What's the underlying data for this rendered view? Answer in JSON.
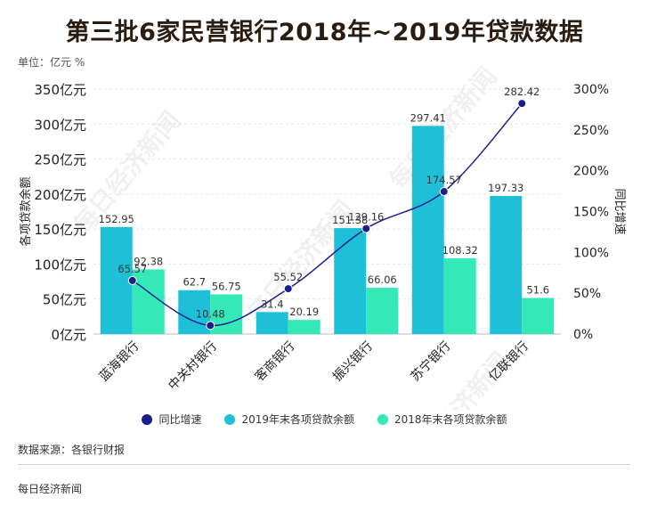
{
  "title": "第三批6家民营银行2018年~2019年贷款数据",
  "unit_label": "单位：亿元 %",
  "source": "数据来源：各银行财报",
  "footer": "每日经济新闻",
  "watermark": "每日经济新闻",
  "colors": {
    "series_2019": "#1ec0d8",
    "series_2018": "#35e8b8",
    "growth": "#1a1f8c"
  },
  "chart_data": {
    "type": "bar",
    "categories": [
      "蓝海银行",
      "中关村银行",
      "客商银行",
      "振兴银行",
      "苏宁银行",
      "亿联银行"
    ],
    "ylabel": "各项贷款余额",
    "y2label": "同比增速",
    "ylim": [
      0,
      350
    ],
    "y2lim": [
      0,
      300
    ],
    "yticks": [
      "0亿元",
      "50亿元",
      "100亿元",
      "150亿元",
      "200亿元",
      "250亿元",
      "300亿元",
      "350亿元"
    ],
    "y2ticks": [
      "0%",
      "50%",
      "100%",
      "150%",
      "200%",
      "250%",
      "300%"
    ],
    "series": [
      {
        "name": "2019年末各项贷款余额",
        "kind": "bar",
        "values": [
          152.95,
          62.7,
          31.4,
          151.38,
          297.41,
          197.33
        ],
        "labels": [
          "152.95",
          "62.7",
          "31.4",
          "151.38",
          "297.41",
          "197.33"
        ]
      },
      {
        "name": "2018年末各项贷款余额",
        "kind": "bar",
        "values": [
          92.38,
          56.75,
          20.19,
          66.06,
          108.32,
          51.6
        ],
        "labels": [
          "92.38",
          "56.75",
          "20.19",
          "66.06",
          "108.32",
          "51.6"
        ]
      },
      {
        "name": "同比增速",
        "kind": "line",
        "axis": "right",
        "values": [
          65.57,
          10.48,
          55.52,
          129.16,
          174.57,
          282.42
        ],
        "labels": [
          "65.57",
          "10.48",
          "55.52",
          "129.16",
          "174.57",
          "282.42"
        ]
      }
    ],
    "grid": true,
    "legend": "bottom"
  }
}
